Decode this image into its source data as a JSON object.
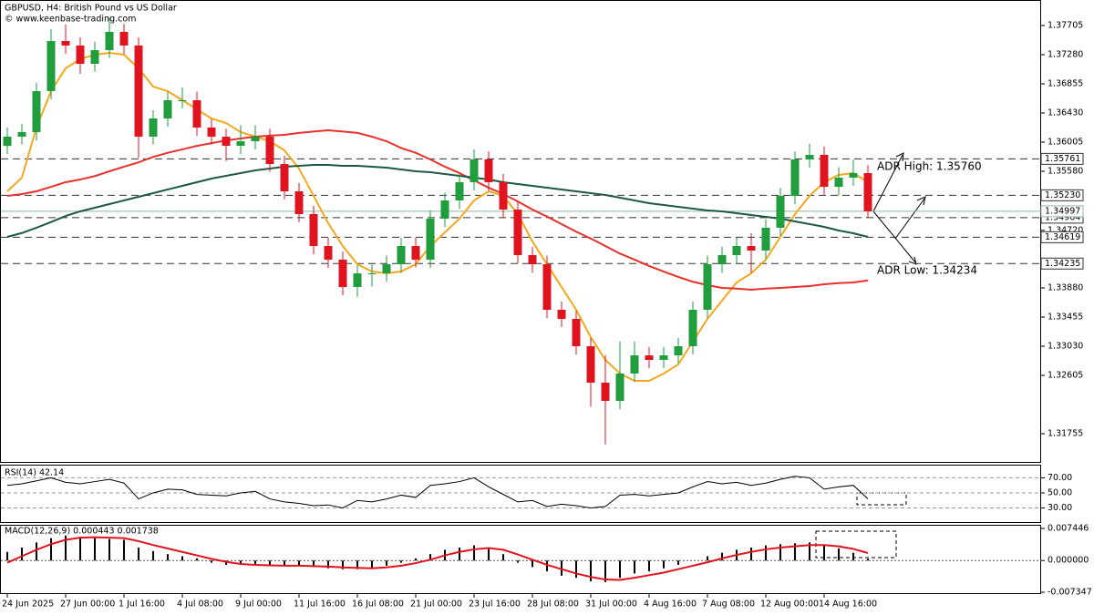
{
  "chart_data": [
    {
      "type": "candlestick",
      "title": "GBPUSD, H4:  British Pound vs US Dollar",
      "subtitle": "© www.keenbase-trading.com",
      "categories": [
        "24 Jun 2025",
        null,
        null,
        null,
        "27 Jun 00:00",
        null,
        null,
        null,
        "1 Jul 16:00",
        null,
        null,
        null,
        "4 Jul 08:00",
        null,
        null,
        null,
        "9 Jul 00:00",
        null,
        null,
        null,
        "11 Jul 16:00",
        null,
        null,
        null,
        "16 Jul 08:00",
        null,
        null,
        null,
        "21 Jul 00:00",
        null,
        null,
        null,
        "23 Jul 16:00",
        null,
        null,
        null,
        "28 Jul 08:00",
        null,
        null,
        null,
        "31 Jul 00:00",
        null,
        null,
        null,
        "4 Aug 16:00",
        null,
        null,
        null,
        "7 Aug 08:00",
        null,
        null,
        null,
        "12 Aug 00:00",
        null,
        null,
        null,
        "14 Aug 16:00",
        null,
        null,
        null
      ],
      "ohlc": [
        [
          1.3595,
          1.3622,
          1.3583,
          1.36085
        ],
        [
          1.36085,
          1.3627,
          1.3597,
          1.36151
        ],
        [
          1.36151,
          1.3687,
          1.3603,
          1.36749
        ],
        [
          1.36749,
          1.3765,
          1.3663,
          1.37479
        ],
        [
          1.37479,
          1.3772,
          1.3729,
          1.37413
        ],
        [
          1.37413,
          1.3753,
          1.37,
          1.37147
        ],
        [
          1.37147,
          1.3747,
          1.3703,
          1.37346
        ],
        [
          1.37346,
          1.3782,
          1.3723,
          1.37612
        ],
        [
          1.37612,
          1.3773,
          1.3729,
          1.37413
        ],
        [
          1.37413,
          1.3753,
          1.3578,
          1.36085
        ],
        [
          1.36085,
          1.3647,
          1.3597,
          1.3635
        ],
        [
          1.3635,
          1.3674,
          1.3623,
          1.36616
        ],
        [
          1.36616,
          1.368,
          1.365,
          1.36616
        ],
        [
          1.36616,
          1.3674,
          1.361,
          1.36218
        ],
        [
          1.36218,
          1.3634,
          1.3597,
          1.36085
        ],
        [
          1.36085,
          1.362,
          1.3573,
          1.35952
        ],
        [
          1.35952,
          1.3625,
          1.3583,
          1.36018
        ],
        [
          1.36018,
          1.3625,
          1.359,
          1.36085
        ],
        [
          1.36085,
          1.362,
          1.3557,
          1.35686
        ],
        [
          1.35686,
          1.3581,
          1.3517,
          1.35288
        ],
        [
          1.35288,
          1.3541,
          1.3484,
          1.34956
        ],
        [
          1.34956,
          1.3508,
          1.3437,
          1.34491
        ],
        [
          1.34491,
          1.3461,
          1.3417,
          1.34292
        ],
        [
          1.34292,
          1.3441,
          1.3377,
          1.33893
        ],
        [
          1.33893,
          1.3421,
          1.3375,
          1.34093
        ],
        [
          1.34093,
          1.3422,
          1.339,
          1.34093
        ],
        [
          1.34093,
          1.3435,
          1.3397,
          1.34225
        ],
        [
          1.34225,
          1.3461,
          1.341,
          1.34491
        ],
        [
          1.34491,
          1.3461,
          1.3418,
          1.34292
        ],
        [
          1.34292,
          1.3501,
          1.3417,
          1.34889
        ],
        [
          1.34889,
          1.3527,
          1.3477,
          1.35155
        ],
        [
          1.35155,
          1.3554,
          1.3503,
          1.35421
        ],
        [
          1.35421,
          1.359,
          1.353,
          1.35753
        ],
        [
          1.35753,
          1.3587,
          1.353,
          1.35421
        ],
        [
          1.35421,
          1.3554,
          1.349,
          1.35022
        ],
        [
          1.35022,
          1.3514,
          1.3424,
          1.34358
        ],
        [
          1.34358,
          1.3448,
          1.341,
          1.34225
        ],
        [
          1.34225,
          1.3435,
          1.3344,
          1.33561
        ],
        [
          1.33561,
          1.3368,
          1.3331,
          1.33429
        ],
        [
          1.33429,
          1.3355,
          1.3291,
          1.3303
        ],
        [
          1.3303,
          1.3315,
          1.3215,
          1.32499
        ],
        [
          1.32499,
          1.329,
          1.316,
          1.32233
        ],
        [
          1.32233,
          1.331,
          1.3211,
          1.32632
        ],
        [
          1.32632,
          1.331,
          1.3251,
          1.32897
        ],
        [
          1.32897,
          1.3302,
          1.3271,
          1.32831
        ],
        [
          1.32831,
          1.3302,
          1.3271,
          1.32897
        ],
        [
          1.32897,
          1.3315,
          1.3278,
          1.3303
        ],
        [
          1.3303,
          1.3368,
          1.3291,
          1.33561
        ],
        [
          1.33561,
          1.3435,
          1.3344,
          1.34225
        ],
        [
          1.34225,
          1.3448,
          1.341,
          1.34358
        ],
        [
          1.34358,
          1.3461,
          1.3424,
          1.34491
        ],
        [
          1.34491,
          1.3468,
          1.341,
          1.34425
        ],
        [
          1.34425,
          1.3488,
          1.343,
          1.34757
        ],
        [
          1.34757,
          1.3534,
          1.3464,
          1.35222
        ],
        [
          1.35222,
          1.3587,
          1.351,
          1.35753
        ],
        [
          1.35753,
          1.3598,
          1.3563,
          1.35819
        ],
        [
          1.35819,
          1.3594,
          1.3524,
          1.35354
        ],
        [
          1.35354,
          1.3564,
          1.3523,
          1.35487
        ],
        [
          1.35487,
          1.3575,
          1.3537,
          1.35554
        ],
        [
          1.35554,
          1.3567,
          1.349,
          1.34997
        ]
      ],
      "up_color": "#1e9e3c",
      "down_color": "#e0141e",
      "overlays": [
        {
          "color": "#f5a81c",
          "values": [
            1.35288,
            1.35487,
            1.36218,
            1.36749,
            1.37081,
            1.37214,
            1.3728,
            1.37307,
            1.3728,
            1.37081,
            1.36815,
            1.36749,
            1.36616,
            1.36483,
            1.3635,
            1.36284,
            1.36151,
            1.36085,
            1.36018,
            1.35886,
            1.3562,
            1.35222,
            1.34823,
            1.34491,
            1.34225,
            1.34119,
            1.34093,
            1.34119,
            1.34225,
            1.34491,
            1.3469,
            1.34889,
            1.35155,
            1.35288,
            1.35222,
            1.34956,
            1.34557,
            1.34225,
            1.33893,
            1.33561,
            1.33163,
            1.32831,
            1.32632,
            1.32525,
            1.32525,
            1.32632,
            1.32765,
            1.33097,
            1.33429,
            1.33694,
            1.3396,
            1.34093,
            1.34292,
            1.34624,
            1.34956,
            1.35222,
            1.35421,
            1.35527,
            1.35554,
            1.35421
          ]
        },
        {
          "color": "#e8312a",
          "values": [
            1.35222,
            1.35248,
            1.35288,
            1.35354,
            1.35421,
            1.3546,
            1.3551,
            1.3558,
            1.35647,
            1.3571,
            1.3579,
            1.3585,
            1.359,
            1.3595,
            1.3599,
            1.3603,
            1.36058,
            1.36085,
            1.361,
            1.36111,
            1.3614,
            1.3616,
            1.36178,
            1.3616,
            1.3614,
            1.36085,
            1.36018,
            1.3592,
            1.3585,
            1.35753,
            1.35647,
            1.35554,
            1.35447,
            1.3534,
            1.3525,
            1.3514,
            1.35022,
            1.3492,
            1.3481,
            1.347,
            1.346,
            1.34491,
            1.3438,
            1.34292,
            1.342,
            1.34119,
            1.3404,
            1.3397,
            1.3392,
            1.3388,
            1.3387,
            1.33854,
            1.3387,
            1.3388,
            1.33893,
            1.33907,
            1.33933,
            1.3395,
            1.3396,
            1.3399
          ]
        },
        {
          "color": "#1d5940",
          "values": [
            1.34624,
            1.3468,
            1.34757,
            1.3484,
            1.34929,
            1.34996,
            1.35049,
            1.35102,
            1.35155,
            1.35208,
            1.35261,
            1.35315,
            1.35368,
            1.35421,
            1.35474,
            1.35514,
            1.35554,
            1.35593,
            1.3562,
            1.35647,
            1.3566,
            1.35673,
            1.35673,
            1.3566,
            1.3566,
            1.35647,
            1.35633,
            1.35607,
            1.3558,
            1.35567,
            1.3554,
            1.35514,
            1.35487,
            1.35461,
            1.35421,
            1.35394,
            1.35368,
            1.35341,
            1.35315,
            1.35288,
            1.35261,
            1.35235,
            1.35195,
            1.35155,
            1.35115,
            1.35089,
            1.35062,
            1.35036,
            1.35009,
            1.34996,
            1.34969,
            1.34943,
            1.34916,
            1.34889,
            1.34849,
            1.3481,
            1.3477,
            1.34717,
            1.34677,
            1.34624
          ]
        }
      ],
      "ylim": [
        1.3133,
        1.38077
      ],
      "yticks": [
        1.37705,
        {
          "value": 1.3728,
          "label": "1.37280"
        },
        1.36855,
        {
          "value": 1.3643,
          "label": "1.36430"
        },
        1.36005,
        {
          "value": 1.3558,
          "label": "1.35580"
        },
        {
          "value": 1.3472,
          "label": "1.34720"
        },
        {
          "value": 1.3388,
          "label": "1.33880"
        },
        1.33455,
        {
          "value": 1.3303,
          "label": "1.33030"
        },
        1.32605,
        1.31755
      ],
      "levels": [
        1.35761,
        {
          "value": 1.3523,
          "label": "1.35230"
        },
        1.34904,
        1.34619,
        1.34235
      ],
      "level_color": "#333333",
      "current": 1.34997,
      "current_color": "#8fb9a8",
      "annotations": [
        "ADR High: 1.35760",
        "ADR Low: 1.34234"
      ]
    },
    {
      "type": "line",
      "title": "RSI(14) 42.14",
      "color": "#000000",
      "values": [
        60,
        62,
        66,
        70,
        64,
        62,
        65,
        68,
        63,
        42,
        50,
        55,
        54,
        48,
        47,
        46,
        50,
        52,
        42,
        38,
        36,
        33,
        34,
        30,
        40,
        38,
        42,
        47,
        44,
        60,
        62,
        65,
        70,
        58,
        48,
        38,
        40,
        32,
        35,
        33,
        30,
        32,
        47,
        48,
        46,
        48,
        50,
        58,
        65,
        62,
        64,
        60,
        63,
        68,
        72,
        70,
        55,
        58,
        60,
        42.14
      ],
      "ylim": [
        11.25,
        86.25
      ],
      "yticks": [
        {
          "value": 70,
          "label": "70.00"
        },
        {
          "value": 50,
          "label": "50.00"
        },
        {
          "value": 30,
          "label": "30.00"
        }
      ]
    },
    {
      "type": "macd",
      "title": "MACD(12,26,9) 0.000443 0.001738",
      "color": "#e0141e",
      "bar_color": "#000000",
      "histogram": [
        0.002,
        0.003,
        0.0042,
        0.0052,
        0.0058,
        0.0055,
        0.0052,
        0.005,
        0.0048,
        0.003,
        0.0022,
        0.0015,
        0.001,
        0.0005,
        -0.0005,
        -0.001,
        -0.001,
        -0.0012,
        -0.0013,
        -0.0012,
        -0.0012,
        -0.0015,
        -0.0018,
        -0.002,
        -0.002,
        -0.0018,
        -0.0012,
        -0.0005,
        0.0005,
        0.0015,
        0.0025,
        0.003,
        0.0035,
        0.003,
        0.0015,
        -0.0005,
        -0.0015,
        -0.0025,
        -0.0035,
        -0.004,
        -0.0048,
        -0.005,
        -0.004,
        -0.003,
        -0.0025,
        -0.0018,
        -0.001,
        0,
        0.001,
        0.0018,
        0.0025,
        0.003,
        0.0035,
        0.0038,
        0.004,
        0.0042,
        0.0035,
        0.0028,
        0.0018,
        0.000443
      ],
      "signal": [
        -0.0005,
        0.001,
        0.0025,
        0.0038,
        0.0048,
        0.0053,
        0.0054,
        0.0053,
        0.0052,
        0.0045,
        0.0036,
        0.0028,
        0.002,
        0.0012,
        0.0004,
        -0.0003,
        -0.0008,
        -0.001,
        -0.0011,
        -0.0012,
        -0.0012,
        -0.0013,
        -0.0014,
        -0.0016,
        -0.0017,
        -0.0018,
        -0.0016,
        -0.0012,
        -0.0006,
        0.0002,
        0.0012,
        0.002,
        0.0026,
        0.0029,
        0.0025,
        0.0014,
        0.0002,
        -0.001,
        -0.002,
        -0.003,
        -0.0038,
        -0.0044,
        -0.0045,
        -0.004,
        -0.0034,
        -0.0028,
        -0.002,
        -0.0012,
        -0.0004,
        0.0005,
        0.0013,
        0.002,
        0.0026,
        0.003,
        0.0033,
        0.0036,
        0.0036,
        0.0033,
        0.0027,
        0.001738
      ],
      "ylim": [
        -0.007347,
        0.007446
      ],
      "yticks": [
        0.007446,
        {
          "value": 0,
          "label": "0.000000"
        },
        -0.007347
      ]
    }
  ]
}
